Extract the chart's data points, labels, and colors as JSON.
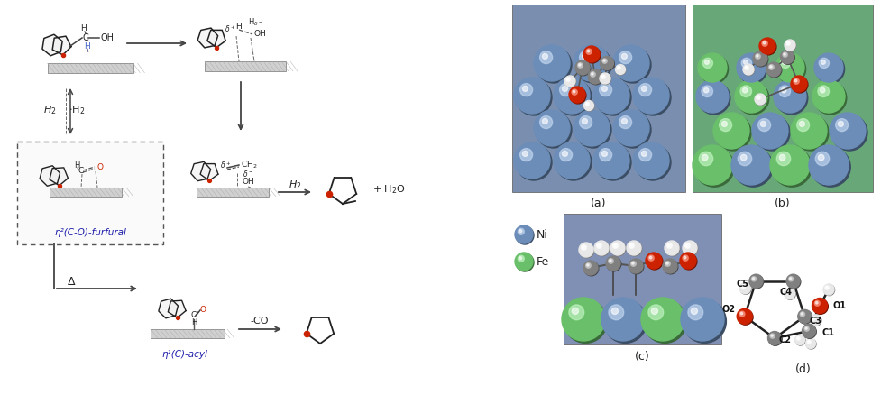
{
  "figure_width": 9.78,
  "figure_height": 4.38,
  "dpi": 100,
  "bg_color": "#ffffff",
  "ni_color": "#6b8db8",
  "ni_color_light": "#8aadd4",
  "ni_color_dark": "#4a6a8a",
  "fe_color": "#6abf6a",
  "fe_color_light": "#8adf8a",
  "fe_color_dark": "#3a8a3a",
  "c_color": "#808080",
  "o_color": "#cc2200",
  "h_color": "#e8e8e8",
  "bond_color": "#666666",
  "arrow_color": "#555555",
  "surface_hatch_color": "#aaaaaa",
  "dashed_box_color": "#666666",
  "text_color": "#222222",
  "label_color": "#1a1aaa",
  "panel_a_bg": "#7090b0",
  "panel_b_bg": "#60a870",
  "panel_c_bg": "#8090b8",
  "labels": {
    "eta2": "η²(C-O)-furfural",
    "eta1": "η¹(C)-acyl",
    "H2_left": "H₂",
    "minus_H2": "-H₂",
    "H2_mid": "H₂",
    "plus_H2O": "+ H₂O",
    "minus_CO": "-CO",
    "Delta": "Δ",
    "Ni": "Ni",
    "Fe": "Fe",
    "cap_a": "(a)",
    "cap_b": "(b)",
    "cap_c": "(c)",
    "cap_d": "(d)"
  }
}
